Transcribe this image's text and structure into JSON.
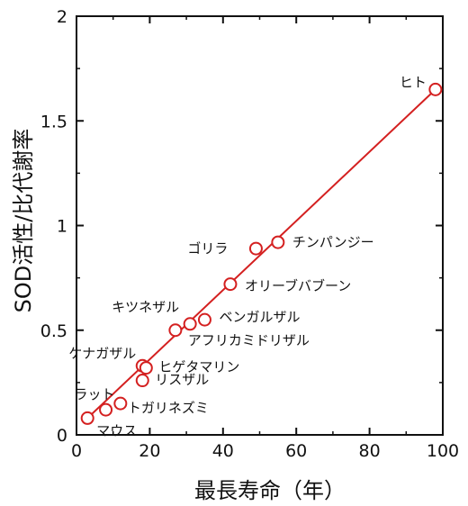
{
  "chart_data": {
    "type": "scatter",
    "xlabel": "最長寿命（年）",
    "ylabel": "SOD活性/比代謝率",
    "xlim": [
      0,
      100
    ],
    "ylim": [
      0,
      2
    ],
    "x_ticks": [
      "0",
      "20",
      "40",
      "60",
      "80",
      "100"
    ],
    "y_ticks": [
      "0",
      "0.5",
      "1",
      "1.5",
      "2"
    ],
    "grid": false,
    "legend": "none",
    "marker_color": "#d42020",
    "line_color": "#d42020",
    "trend_line": {
      "x": [
        3,
        98
      ],
      "y": [
        0.08,
        1.65
      ]
    },
    "points": [
      {
        "label": "ヒト",
        "x": 98,
        "y": 1.65
      },
      {
        "label": "チンパンジー",
        "x": 55,
        "y": 0.92
      },
      {
        "label": "ゴリラ",
        "x": 49,
        "y": 0.89
      },
      {
        "label": "オリーブバブーン",
        "x": 42,
        "y": 0.72
      },
      {
        "label": "ベンガルザル",
        "x": 35,
        "y": 0.55
      },
      {
        "label": "キツネザル",
        "x": 31,
        "y": 0.53
      },
      {
        "label": "アフリカミドリザル",
        "x": 27,
        "y": 0.5
      },
      {
        "label": "ケナガザル",
        "x": 18,
        "y": 0.33
      },
      {
        "label": "ヒゲタマリン",
        "x": 19,
        "y": 0.32
      },
      {
        "label": "リスザル",
        "x": 18,
        "y": 0.26
      },
      {
        "label": "トガリネズミ",
        "x": 12,
        "y": 0.15
      },
      {
        "label": "ラット",
        "x": 8,
        "y": 0.12
      },
      {
        "label": "マウス",
        "x": 3,
        "y": 0.08
      }
    ]
  }
}
